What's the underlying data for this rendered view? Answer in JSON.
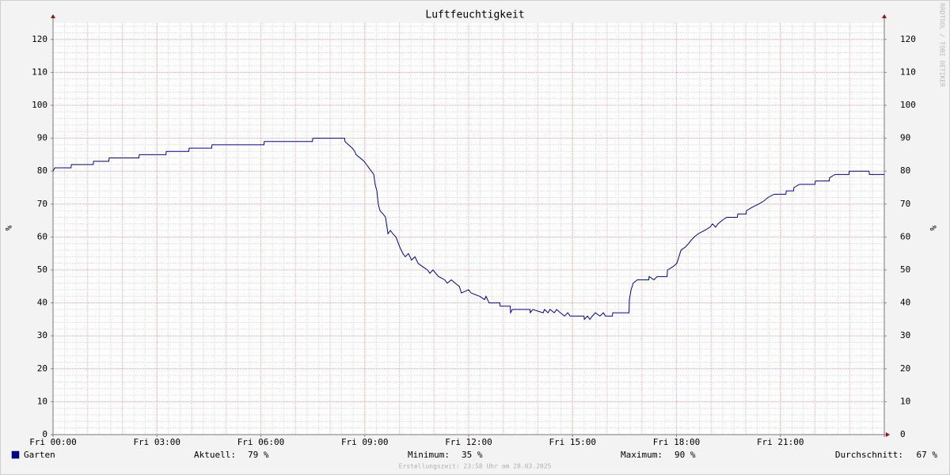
{
  "chart_data": {
    "type": "line",
    "title": "Luftfeuchtigkeit",
    "y_label": "%",
    "y2_label": "%",
    "watermark": "RRDTOOL / TOBI OETIKER",
    "footer": "Erstellungszeit: 23:58 Uhr am 28.03.2025",
    "xlim": [
      0,
      24
    ],
    "xticks": [
      {
        "value": 0,
        "label": "Fri 00:00"
      },
      {
        "value": 3,
        "label": "Fri 03:00"
      },
      {
        "value": 6,
        "label": "Fri 06:00"
      },
      {
        "value": 9,
        "label": "Fri 09:00"
      },
      {
        "value": 12,
        "label": "Fri 12:00"
      },
      {
        "value": 15,
        "label": "Fri 15:00"
      },
      {
        "value": 18,
        "label": "Fri 18:00"
      },
      {
        "value": 21,
        "label": "Fri 21:00"
      }
    ],
    "ylim": [
      0,
      125
    ],
    "yticks": [
      0,
      10,
      20,
      30,
      40,
      50,
      60,
      70,
      80,
      90,
      100,
      110,
      120
    ],
    "y2lim": [
      0,
      125
    ],
    "y2ticks": [
      0,
      10,
      20,
      30,
      40,
      50,
      60,
      70,
      80,
      90,
      100,
      110,
      120
    ],
    "grid": true,
    "series": [
      {
        "name": "Garten",
        "color": "#000099",
        "x": [
          0,
          0.05,
          0.52,
          0.53,
          1.16,
          1.17,
          1.61,
          1.62,
          2.48,
          2.49,
          3.26,
          3.27,
          3.92,
          3.93,
          4.58,
          4.59,
          6.09,
          6.1,
          7.49,
          7.5,
          8.42,
          8.43,
          8.53,
          8.64,
          8.71,
          8.75,
          8.87,
          8.98,
          9.05,
          9.12,
          9.19,
          9.26,
          9.3,
          9.35,
          9.39,
          9.44,
          9.53,
          9.6,
          9.67,
          9.74,
          9.81,
          9.9,
          10.01,
          10.1,
          10.17,
          10.26,
          10.35,
          10.45,
          10.54,
          10.67,
          10.81,
          10.88,
          10.97,
          11.13,
          11.31,
          11.38,
          11.5,
          11.61,
          11.73,
          11.79,
          12.0,
          12.07,
          12.32,
          12.46,
          12.5,
          12.59,
          12.9,
          12.91,
          13.2,
          13.21,
          13.26,
          13.77,
          13.78,
          13.85,
          14.15,
          14.19,
          14.29,
          14.35,
          14.47,
          14.54,
          14.65,
          14.77,
          14.86,
          14.93,
          15.33,
          15.34,
          15.43,
          15.5,
          15.57,
          15.66,
          15.79,
          15.89,
          15.95,
          16.15,
          16.16,
          16.63,
          16.64,
          16.69,
          16.75,
          16.87,
          17.2,
          17.21,
          17.35,
          17.44,
          17.73,
          17.74,
          17.9,
          18.01,
          18.13,
          18.26,
          18.35,
          18.42,
          18.51,
          18.63,
          18.81,
          18.97,
          19.04,
          19.13,
          19.2,
          19.31,
          19.45,
          19.76,
          19.77,
          20.01,
          20.02,
          20.18,
          20.37,
          20.53,
          20.64,
          20.82,
          21.16,
          21.17,
          21.38,
          21.39,
          21.55,
          22.0,
          22.01,
          22.41,
          22.42,
          22.58,
          22.98,
          22.99,
          23.56,
          23.57,
          24
        ],
        "values": [
          80,
          81,
          81,
          82,
          82,
          83,
          83,
          84,
          84,
          85,
          85,
          86,
          86,
          87,
          87,
          88,
          88,
          89,
          89,
          90,
          90,
          89,
          88,
          87,
          86,
          85,
          84,
          83,
          82,
          81,
          80,
          79,
          76,
          74,
          70,
          68,
          67,
          66,
          61,
          62,
          61,
          60,
          57,
          55,
          54,
          55,
          53,
          54,
          52,
          51,
          50,
          49,
          50,
          48,
          47,
          46,
          47,
          46,
          45,
          43,
          44,
          43,
          42,
          41,
          42,
          40,
          40,
          39,
          39,
          37,
          38,
          38,
          37,
          38,
          37,
          38,
          37,
          38,
          37,
          38,
          37,
          36,
          37,
          36,
          36,
          35,
          36,
          35,
          36,
          37,
          36,
          37,
          36,
          36,
          37,
          37,
          41,
          44,
          46,
          47,
          47,
          48,
          47,
          48,
          48,
          50,
          51,
          52,
          56,
          57,
          58,
          59,
          60,
          61,
          62,
          63,
          64,
          63,
          64,
          65,
          66,
          66,
          67,
          67,
          68,
          69,
          70,
          71,
          72,
          73,
          73,
          74,
          74,
          75,
          76,
          76,
          77,
          77,
          78,
          79,
          79,
          80,
          80,
          79,
          79
        ]
      }
    ],
    "stats": [
      {
        "label": "Aktuell:",
        "text": "79 %"
      },
      {
        "label": "Minimum:",
        "text": "35 %"
      },
      {
        "label": "Maximum:",
        "text": "90 %"
      },
      {
        "label": "Durchschnitt:",
        "text": "67 %"
      }
    ]
  }
}
